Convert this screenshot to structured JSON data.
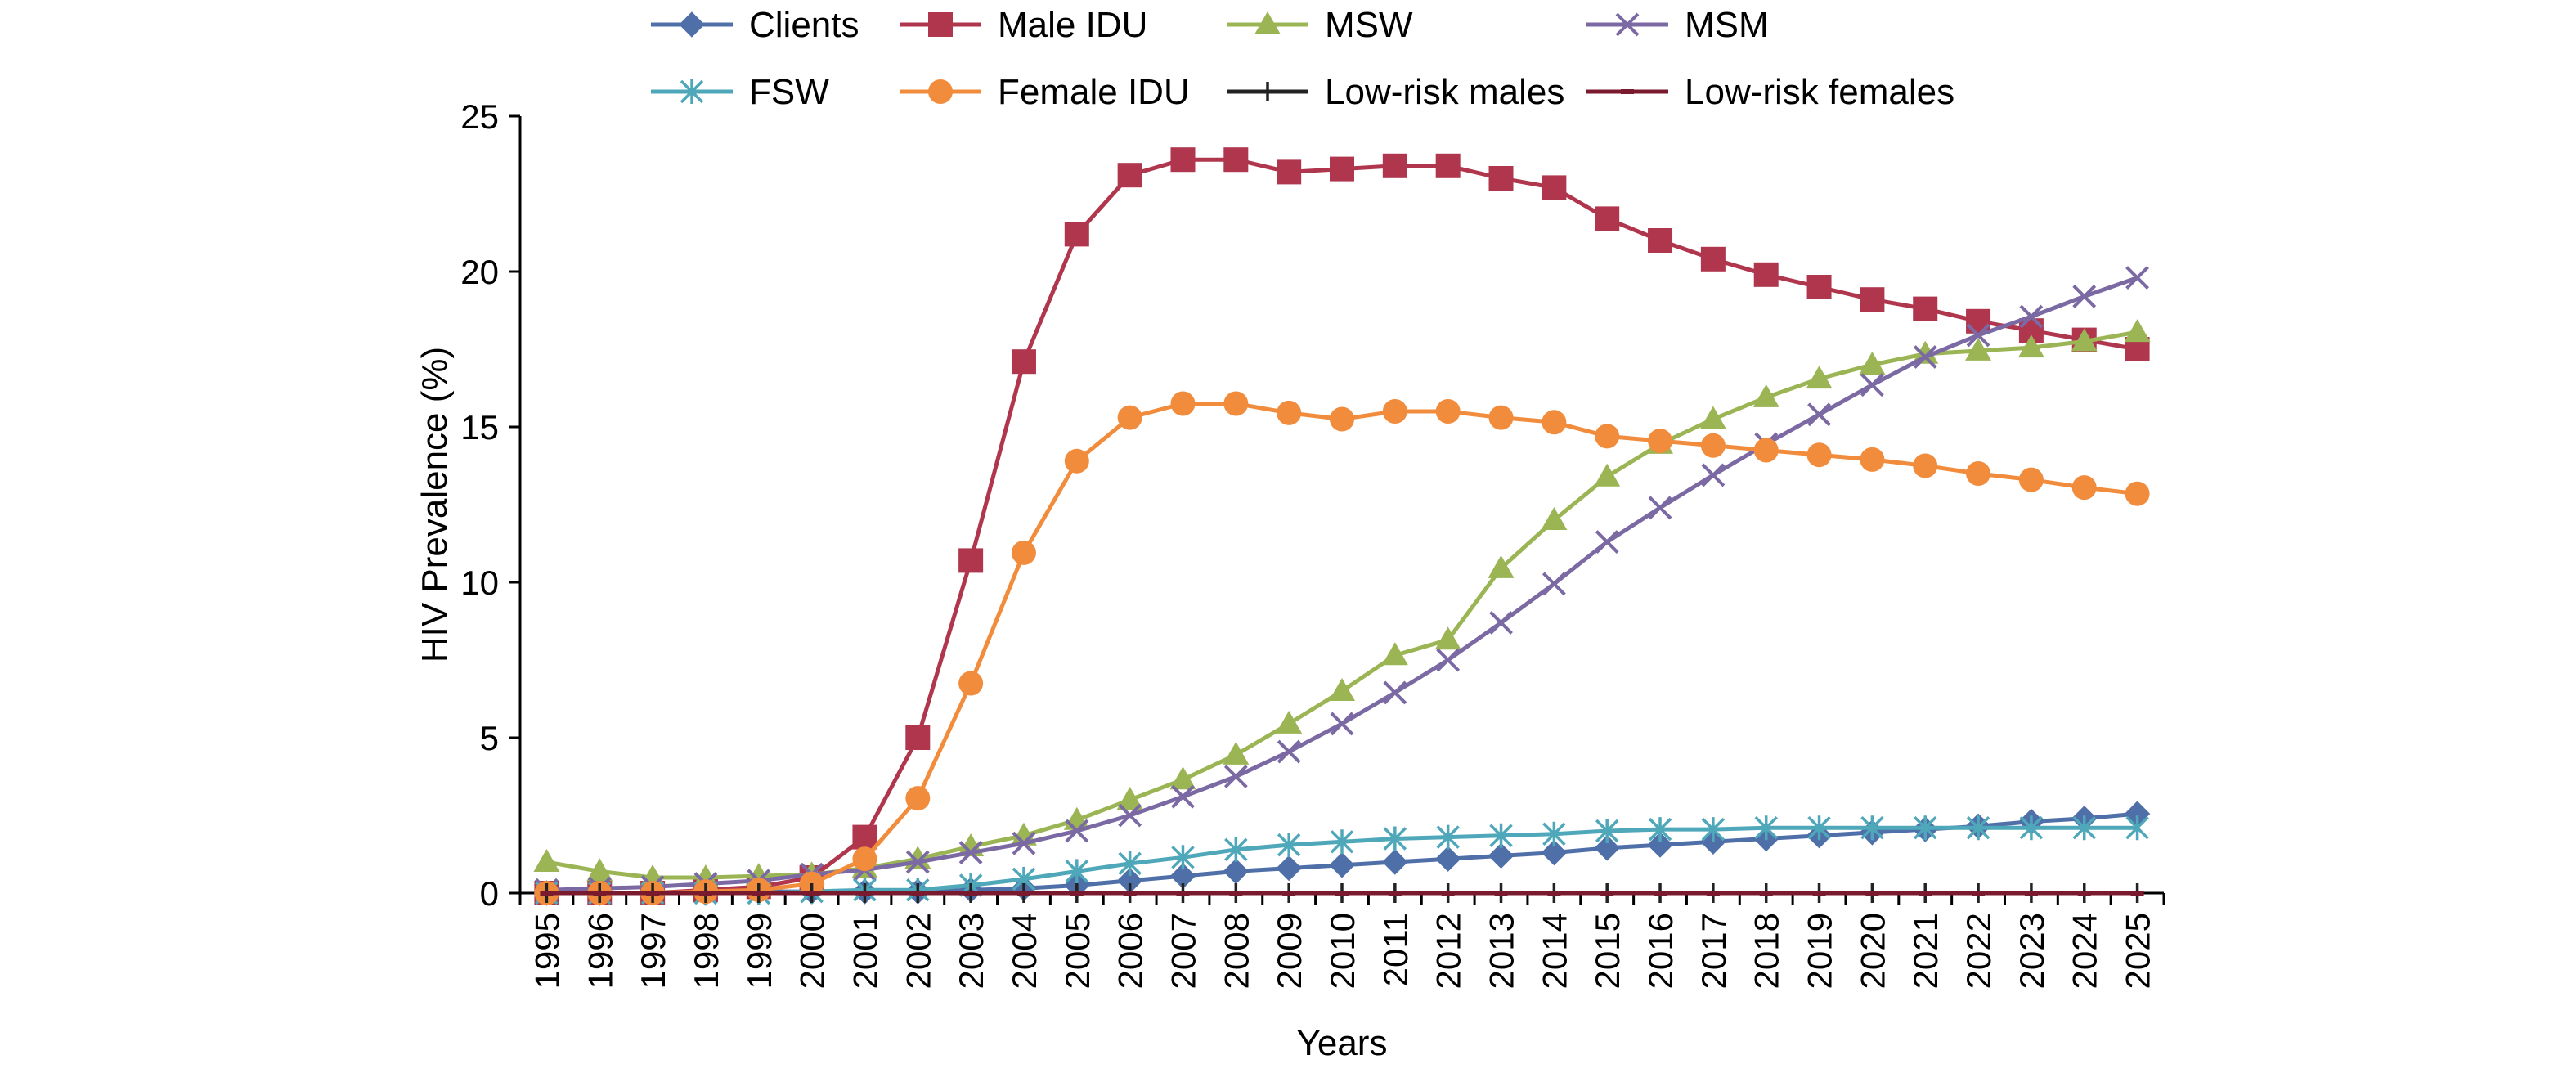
{
  "chart_data": {
    "type": "line",
    "title": "",
    "xlabel": "Years",
    "ylabel": "HIV Prevalence (%)",
    "ylim": [
      0,
      25
    ],
    "yticks": [
      "0",
      "5",
      "10",
      "15",
      "20",
      "25"
    ],
    "grid": false,
    "legend_position": "top",
    "x": [
      "1995",
      "1996",
      "1997",
      "1998",
      "1999",
      "2000",
      "2001",
      "2002",
      "2003",
      "2004",
      "2005",
      "2006",
      "2007",
      "2008",
      "2009",
      "2010",
      "2011",
      "2012",
      "2013",
      "2014",
      "2015",
      "2016",
      "2017",
      "2018",
      "2019",
      "2020",
      "2021",
      "2022",
      "2023",
      "2024",
      "2025"
    ],
    "series": [
      {
        "name": "Clients",
        "color": "#4F6FA8",
        "marker": "diamond",
        "values": [
          0,
          0,
          0,
          0,
          0.05,
          0.05,
          0.05,
          0.05,
          0.1,
          0.15,
          0.25,
          0.4,
          0.55,
          0.7,
          0.8,
          0.9,
          1.0,
          1.1,
          1.2,
          1.3,
          1.45,
          1.55,
          1.65,
          1.75,
          1.85,
          1.95,
          2.05,
          2.15,
          2.3,
          2.4,
          2.55
        ]
      },
      {
        "name": "Male IDU",
        "color": "#B0364E",
        "marker": "square",
        "values": [
          0,
          0,
          0,
          0.1,
          0.2,
          0.5,
          1.8,
          5.0,
          10.7,
          17.1,
          21.2,
          23.1,
          23.6,
          23.6,
          23.2,
          23.3,
          23.4,
          23.4,
          23.0,
          22.7,
          21.7,
          21.0,
          20.4,
          19.9,
          19.5,
          19.1,
          18.8,
          18.4,
          18.1,
          17.8,
          17.5
        ]
      },
      {
        "name": "MSW",
        "color": "#9BB554",
        "marker": "triangle",
        "values": [
          1.0,
          0.7,
          0.5,
          0.5,
          0.55,
          0.6,
          0.8,
          1.1,
          1.5,
          1.85,
          2.35,
          3.0,
          3.65,
          4.45,
          5.45,
          6.5,
          7.65,
          8.15,
          10.45,
          12.0,
          13.4,
          14.45,
          15.25,
          15.95,
          16.55,
          17.0,
          17.35,
          17.45,
          17.55,
          17.75,
          18.05
        ]
      },
      {
        "name": "MSM",
        "color": "#7B69A4",
        "marker": "x",
        "values": [
          0.1,
          0.15,
          0.2,
          0.3,
          0.4,
          0.6,
          0.75,
          1.0,
          1.3,
          1.6,
          2.0,
          2.5,
          3.1,
          3.75,
          4.55,
          5.45,
          6.45,
          7.5,
          8.7,
          9.95,
          11.3,
          12.4,
          13.45,
          14.45,
          15.4,
          16.35,
          17.25,
          17.95,
          18.55,
          19.2,
          19.8
        ]
      },
      {
        "name": "FSW",
        "color": "#4FA8BA",
        "marker": "asterisk",
        "values": [
          0,
          0,
          0,
          0,
          0,
          0.05,
          0.1,
          0.1,
          0.25,
          0.45,
          0.7,
          0.95,
          1.15,
          1.4,
          1.55,
          1.65,
          1.75,
          1.8,
          1.85,
          1.9,
          2.0,
          2.05,
          2.05,
          2.1,
          2.1,
          2.1,
          2.1,
          2.1,
          2.1,
          2.1,
          2.1
        ]
      },
      {
        "name": "Female IDU",
        "color": "#F28C3D",
        "marker": "circle",
        "values": [
          0,
          0,
          0,
          0.05,
          0.1,
          0.3,
          1.1,
          3.05,
          6.75,
          10.95,
          13.9,
          15.3,
          15.75,
          15.75,
          15.45,
          15.25,
          15.5,
          15.5,
          15.3,
          15.15,
          14.7,
          14.55,
          14.4,
          14.25,
          14.1,
          13.95,
          13.75,
          13.5,
          13.3,
          13.05,
          12.85
        ]
      },
      {
        "name": "Low-risk males",
        "color": "#222222",
        "marker": "plus",
        "values": [
          0,
          0,
          0,
          0,
          0,
          0,
          0,
          0,
          0,
          0,
          0,
          0,
          0,
          0,
          0,
          0,
          0,
          0,
          0,
          0,
          0,
          0,
          0,
          0,
          0,
          0,
          0,
          0,
          0,
          0,
          0
        ]
      },
      {
        "name": "Low-risk females",
        "color": "#7A1A2E",
        "marker": "dash",
        "values": [
          0,
          0,
          0,
          0,
          0,
          0,
          0,
          0,
          0,
          0,
          0,
          0,
          0,
          0,
          0,
          0,
          0,
          0,
          0,
          0,
          0,
          0,
          0,
          0,
          0,
          0,
          0,
          0,
          0,
          0,
          0
        ]
      }
    ]
  }
}
